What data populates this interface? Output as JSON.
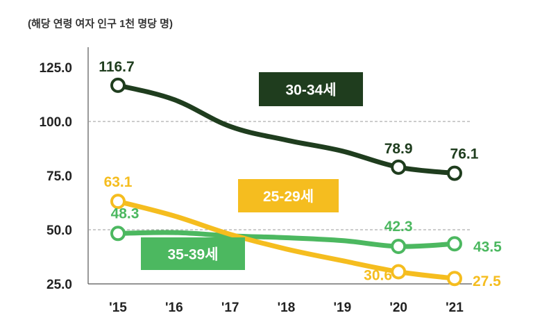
{
  "chart_data": {
    "type": "line",
    "unit_note": "(해당 연령 여자 인구 1천 명당 명)",
    "categories": [
      "'15",
      "'16",
      "'17",
      "'18",
      "'19",
      "'20",
      "'21"
    ],
    "ylim": [
      25,
      125
    ],
    "yticks": [
      "125.0",
      "100.0",
      "75.0",
      "50.0",
      "25.0"
    ],
    "ytick_values": [
      125,
      100,
      75,
      50,
      25
    ],
    "series": [
      {
        "name": "30-34세",
        "color": "#1f3d1e",
        "label_text_color": "#ffffff",
        "values": [
          116.7,
          110.1,
          97.7,
          91.4,
          86.3,
          78.9,
          76.1
        ],
        "labels": [
          "116.7",
          "",
          "",
          "",
          "",
          "78.9",
          "76.1"
        ],
        "markers": [
          true,
          false,
          false,
          false,
          false,
          true,
          true
        ]
      },
      {
        "name": "25-29세",
        "color": "#f5bd1f",
        "label_text_color": "#1f3d1e",
        "values": [
          63.1,
          56.4,
          47.9,
          41.1,
          35.7,
          30.6,
          27.5
        ],
        "labels": [
          "63.1",
          "",
          "",
          "",
          "",
          "30.6",
          "27.5"
        ],
        "markers": [
          true,
          false,
          false,
          false,
          false,
          true,
          true
        ]
      },
      {
        "name": "35-39세",
        "color": "#4cb860",
        "label_text_color": "#ffffff",
        "values": [
          48.3,
          48.7,
          47.2,
          46.3,
          45.0,
          42.3,
          43.5
        ],
        "labels": [
          "48.3",
          "",
          "",
          "",
          "",
          "42.3",
          "43.5"
        ],
        "markers": [
          true,
          false,
          false,
          false,
          false,
          true,
          true
        ]
      }
    ]
  }
}
